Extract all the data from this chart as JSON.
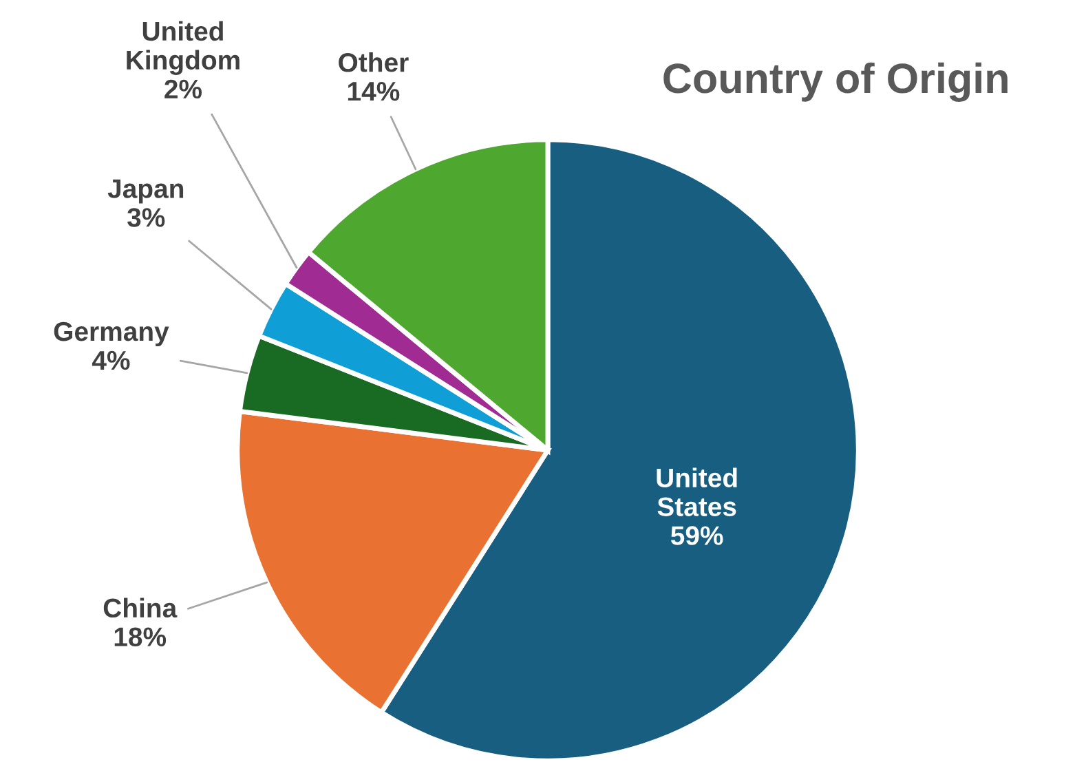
{
  "chart_data": {
    "type": "pie",
    "title": "Country of Origin",
    "categories": [
      "United States",
      "China",
      "Germany",
      "Japan",
      "United Kingdom",
      "Other"
    ],
    "values": [
      59,
      18,
      4,
      3,
      2,
      14
    ],
    "value_labels": [
      "59%",
      "18%",
      "4%",
      "3%",
      "2%",
      "14%"
    ],
    "colors": [
      "#175e80",
      "#e97132",
      "#196b24",
      "#0f9ed5",
      "#a02b93",
      "#4ea72e"
    ],
    "legend": false
  }
}
